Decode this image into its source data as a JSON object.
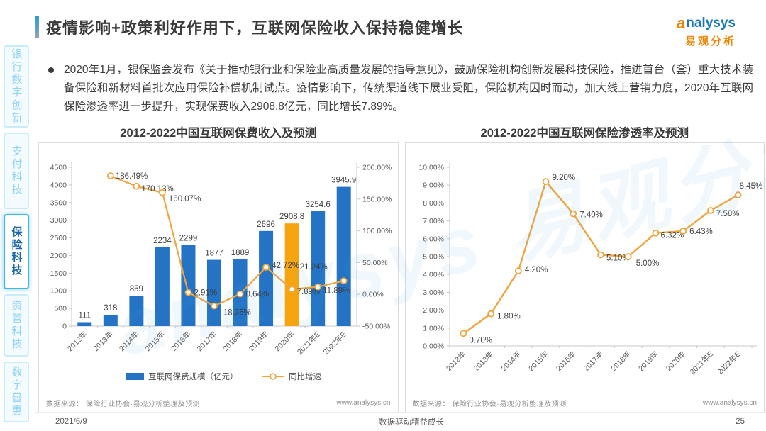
{
  "page": {
    "title": "疫情影响+政策利好作用下，互联网保险收入保持稳健增长",
    "logo": {
      "brand_a": "a",
      "brand_rest": "nalysys",
      "brand_cn": "易观分析"
    },
    "bullet": "2020年1月，银保监会发布《关于推动银行业和保险业高质量发展的指导意见》，鼓励保险机构创新发展科技保险，推进首台（套）重大技术装备保险和新材料首批次应用保险补偿机制试点。疫情影响下，传统渠道线下展业受阻，保险机构因时而动，加大线上营销力度，2020年互联网保险渗透率进一步提升，实现保费收入2908.8亿元，同比增长7.89%。",
    "watermark": "analysys 易观分析",
    "footer": {
      "date": "2021/6/9",
      "slogan": "数据驱动精益成长",
      "page_number": "25"
    }
  },
  "sidebar": {
    "items": [
      {
        "label": "银行数字创新",
        "active": false
      },
      {
        "label": "支付科技",
        "active": false
      },
      {
        "label": "保险科技",
        "active": true
      },
      {
        "label": "资管科技",
        "active": false
      },
      {
        "label": "数字普惠",
        "active": false
      }
    ]
  },
  "colors": {
    "bar_blue": "#2473c5",
    "bar_highlight": "#f7a411",
    "line_orange": "#f0a43e",
    "axis_line": "#c8c8c8",
    "axis_text": "#595959",
    "label_text": "#3f3f3f"
  },
  "chart_data": [
    {
      "type": "bar",
      "title": "2012-2022中国互联网保费收入及预测",
      "categories": [
        "2012年",
        "2013年",
        "2014年",
        "2015年",
        "2016年",
        "2017年",
        "2018年",
        "2019年",
        "2020年",
        "2021年E",
        "2022年E"
      ],
      "series": [
        {
          "name": "互联网保费规模（亿元）",
          "type": "bar",
          "values": [
            111,
            318,
            859,
            2234,
            2299,
            1877,
            1889,
            2696,
            2908.8,
            3254.6,
            3945.9
          ],
          "value_labels": [
            "111",
            "318",
            "859",
            "2234",
            "2299",
            "1877",
            "1889",
            "2696",
            "2908.8",
            "3254.6",
            "3945.9"
          ],
          "highlight_index": 8
        },
        {
          "name": "同比增速",
          "type": "line",
          "values": [
            null,
            186.49,
            170.13,
            160.07,
            2.91,
            -18.36,
            0.64,
            42.72,
            7.89,
            11.89,
            21.24
          ],
          "value_labels": [
            null,
            "186.49%",
            "170.13%",
            "160.07%",
            "2.91%",
            "-18.36%",
            "0.64%",
            "42.72%",
            "7.89%",
            "11.89%",
            "21.24%"
          ]
        }
      ],
      "y1": {
        "min": 0,
        "max": 4500,
        "step": 500
      },
      "y2": {
        "min": -50,
        "max": 200,
        "step": 50
      },
      "legend": [
        "互联网保费规模（亿元）",
        "同比增速"
      ],
      "grid": false,
      "source": "数据来源： 保险行业协会·易观分析整理及预测",
      "url": "www.analysys.cn"
    },
    {
      "type": "line",
      "title": "2012-2022中国互联网保险渗透率及预测",
      "categories": [
        "2012年",
        "2013年",
        "2014年",
        "2015年",
        "2016年",
        "2017年",
        "2018年",
        "2019年",
        "2020年",
        "2021年E",
        "2022年E"
      ],
      "values": [
        0.7,
        1.8,
        4.2,
        9.2,
        7.4,
        5.1,
        5.0,
        6.32,
        6.43,
        7.58,
        8.45
      ],
      "value_labels": [
        "0.70%",
        "1.80%",
        "4.20%",
        "9.20%",
        "7.40%",
        "5.10%",
        "5.00%",
        "6.32%",
        "6.43%",
        "7.58%",
        "8.45%"
      ],
      "ylim": [
        0,
        10
      ],
      "ystep": 1,
      "grid": false,
      "legend_position": "none",
      "source": "数据来源： 保险行业协会·易观分析整理及预测",
      "url": "www.analysys.cn"
    }
  ]
}
